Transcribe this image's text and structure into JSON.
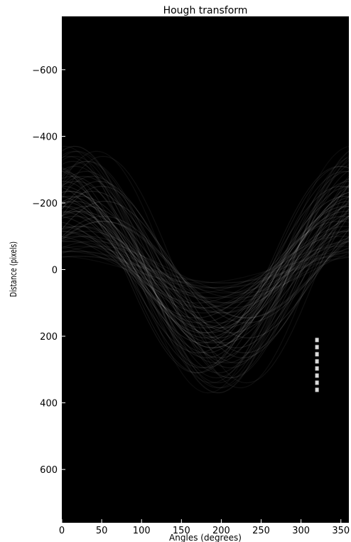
{
  "chart_data": {
    "type": "heatmap",
    "title": "Hough transform",
    "xlabel": "Angles (degrees)",
    "ylabel": "Distance (pixels)",
    "xlim": [
      0,
      360
    ],
    "ylim": [
      -760,
      760
    ],
    "x_ticks": [
      0,
      50,
      100,
      150,
      200,
      250,
      300,
      350
    ],
    "y_ticks": [
      -600,
      -400,
      -200,
      0,
      200,
      400,
      600
    ],
    "y_tick_labels": [
      "−600",
      "−400",
      "−200",
      "0",
      "200",
      "400",
      "600"
    ],
    "colormap": "gray",
    "background_color": "#000000",
    "sinusoid_band": {
      "center_amplitude": 205,
      "center_phase_deg": 20,
      "min_amplitude": 40,
      "max_amplitude": 375,
      "amplitude_step": 15,
      "phase_jitter_deg": 70
    },
    "peak": {
      "angle": 320,
      "distance_from": 205,
      "distance_to": 370
    }
  }
}
